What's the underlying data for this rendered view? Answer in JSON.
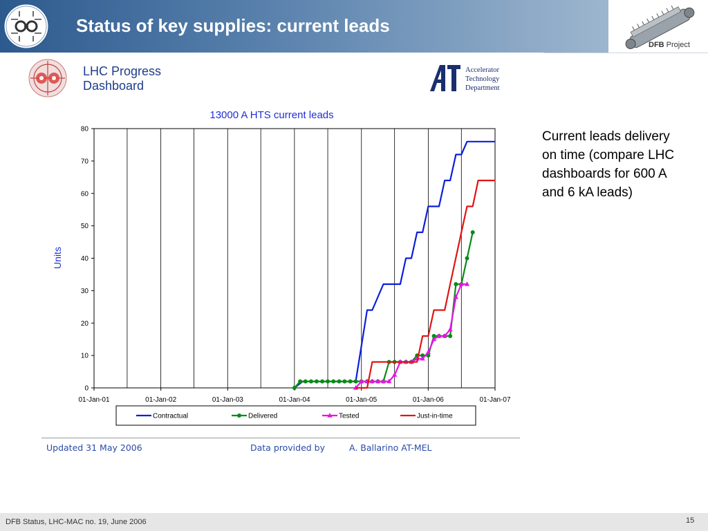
{
  "slide": {
    "title": "Status of key supplies: current leads",
    "dfb_label_bold": "DFB",
    "dfb_label_rest": "Project",
    "note": "Current leads delivery on time (compare LHC dashboards for 600 A and 6 kA leads)",
    "footer_left": "DFB Status, LHC-MAC no. 19, June 2006",
    "footer_right": "15"
  },
  "dashboard": {
    "title_line1": "LHC Progress",
    "title_line2": "Dashboard",
    "dept_line1": "Accelerator",
    "dept_line2": "Technology",
    "dept_line3": "Department",
    "updated": "Updated 31 May 2006",
    "provided_by_label": "Data provided by",
    "provider": "A. Ballarino   AT-MEL"
  },
  "chart_data": {
    "type": "line",
    "title": "13000 A HTS current leads",
    "xlabel": "",
    "ylabel": "Units",
    "x_tick_labels": [
      "01-Jan-01",
      "01-Jan-02",
      "01-Jan-03",
      "01-Jan-04",
      "01-Jan-05",
      "01-Jan-06",
      "01-Jan-07"
    ],
    "x_range": [
      "2001-01-01",
      "2007-01-01"
    ],
    "ylim": [
      0,
      80
    ],
    "y_ticks": [
      0,
      10,
      20,
      30,
      40,
      50,
      60,
      70,
      80
    ],
    "grid": true,
    "legend_position": "bottom",
    "series": [
      {
        "name": "Contractual",
        "color": "#0a1edc",
        "marker": "none",
        "points": [
          [
            "2004-01-01",
            0
          ],
          [
            "2004-02-15",
            2
          ],
          [
            "2004-12-01",
            2
          ],
          [
            "2005-02-01",
            24
          ],
          [
            "2005-03-01",
            24
          ],
          [
            "2005-05-01",
            32
          ],
          [
            "2005-08-01",
            32
          ],
          [
            "2005-09-01",
            40
          ],
          [
            "2005-10-01",
            40
          ],
          [
            "2005-11-01",
            48
          ],
          [
            "2005-12-01",
            48
          ],
          [
            "2006-01-01",
            56
          ],
          [
            "2006-03-01",
            56
          ],
          [
            "2006-04-01",
            64
          ],
          [
            "2006-05-01",
            64
          ],
          [
            "2006-06-01",
            72
          ],
          [
            "2006-07-01",
            72
          ],
          [
            "2006-08-01",
            76
          ],
          [
            "2007-01-01",
            76
          ]
        ]
      },
      {
        "name": "Delivered",
        "color": "#0a8a18",
        "marker": "circle",
        "points": [
          [
            "2004-01-01",
            0
          ],
          [
            "2004-02-01",
            2
          ],
          [
            "2004-03-01",
            2
          ],
          [
            "2004-04-01",
            2
          ],
          [
            "2004-05-01",
            2
          ],
          [
            "2004-06-01",
            2
          ],
          [
            "2004-07-01",
            2
          ],
          [
            "2004-08-01",
            2
          ],
          [
            "2004-09-01",
            2
          ],
          [
            "2004-10-01",
            2
          ],
          [
            "2004-11-01",
            2
          ],
          [
            "2004-12-01",
            2
          ],
          [
            "2005-01-01",
            2
          ],
          [
            "2005-02-01",
            2
          ],
          [
            "2005-03-01",
            2
          ],
          [
            "2005-04-01",
            2
          ],
          [
            "2005-05-01",
            2
          ],
          [
            "2005-06-01",
            8
          ],
          [
            "2005-07-01",
            8
          ],
          [
            "2005-08-01",
            8
          ],
          [
            "2005-09-01",
            8
          ],
          [
            "2005-10-01",
            8
          ],
          [
            "2005-11-01",
            10
          ],
          [
            "2005-12-01",
            10
          ],
          [
            "2006-01-01",
            10
          ],
          [
            "2006-02-01",
            16
          ],
          [
            "2006-03-01",
            16
          ],
          [
            "2006-04-01",
            16
          ],
          [
            "2006-05-01",
            16
          ],
          [
            "2006-06-01",
            32
          ],
          [
            "2006-07-01",
            32
          ],
          [
            "2006-08-01",
            40
          ],
          [
            "2006-09-01",
            48
          ]
        ]
      },
      {
        "name": "Tested",
        "color": "#e614e6",
        "marker": "triangle",
        "points": [
          [
            "2004-12-01",
            0
          ],
          [
            "2005-01-01",
            2
          ],
          [
            "2005-02-01",
            2
          ],
          [
            "2005-03-01",
            2
          ],
          [
            "2005-04-01",
            2
          ],
          [
            "2005-05-01",
            2
          ],
          [
            "2005-06-01",
            2
          ],
          [
            "2005-07-01",
            4
          ],
          [
            "2005-08-01",
            8
          ],
          [
            "2005-09-01",
            8
          ],
          [
            "2005-10-01",
            8
          ],
          [
            "2005-11-01",
            9
          ],
          [
            "2005-12-01",
            9
          ],
          [
            "2006-01-01",
            11
          ],
          [
            "2006-02-01",
            15
          ],
          [
            "2006-03-01",
            16
          ],
          [
            "2006-04-01",
            16
          ],
          [
            "2006-05-01",
            18
          ],
          [
            "2006-06-01",
            28
          ],
          [
            "2006-07-01",
            32
          ],
          [
            "2006-08-01",
            32
          ]
        ]
      },
      {
        "name": "Just-in-time",
        "color": "#e01414",
        "marker": "none",
        "points": [
          [
            "2004-12-01",
            0
          ],
          [
            "2005-02-01",
            0
          ],
          [
            "2005-03-01",
            8
          ],
          [
            "2005-09-01",
            8
          ],
          [
            "2005-10-01",
            8
          ],
          [
            "2005-11-01",
            8
          ],
          [
            "2005-12-01",
            16
          ],
          [
            "2006-01-01",
            16
          ],
          [
            "2006-02-01",
            24
          ],
          [
            "2006-04-01",
            24
          ],
          [
            "2006-05-01",
            32
          ],
          [
            "2006-07-01",
            48
          ],
          [
            "2006-08-01",
            56
          ],
          [
            "2006-09-01",
            56
          ],
          [
            "2006-10-01",
            64
          ],
          [
            "2007-01-01",
            64
          ]
        ]
      }
    ]
  }
}
